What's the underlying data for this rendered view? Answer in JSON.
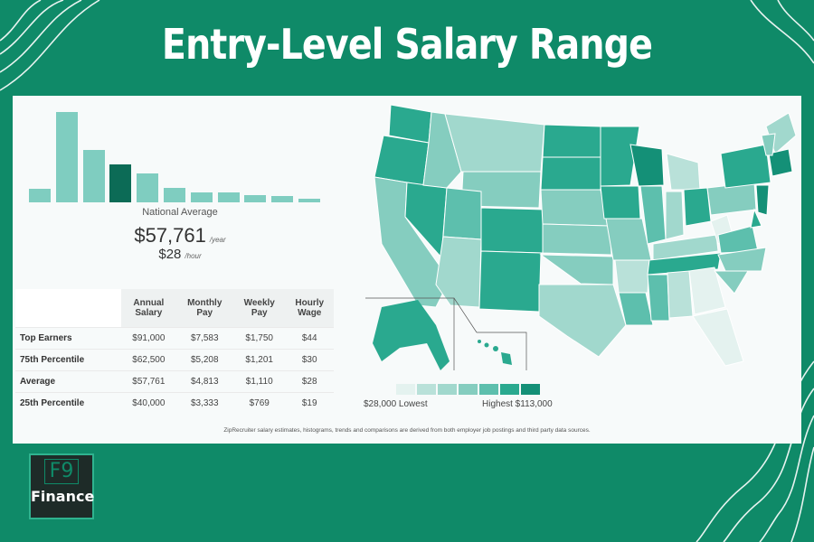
{
  "title": "Entry-Level Salary Range",
  "histogram": {
    "values": [
      15,
      99,
      57,
      42,
      32,
      16,
      11,
      11,
      8,
      7,
      4
    ],
    "highlight_index": 3,
    "bar_color": "#7fcdc0",
    "highlight_color": "#0c6b56"
  },
  "national": {
    "label": "National Average",
    "annual": "$57,761",
    "annual_unit": "/year",
    "hourly": "$28",
    "hourly_unit": "/hour"
  },
  "table": {
    "headers": [
      [
        "Annual",
        "Salary"
      ],
      [
        "Monthly",
        "Pay"
      ],
      [
        "Weekly",
        "Pay"
      ],
      [
        "Hourly",
        "Wage"
      ]
    ],
    "rows": [
      {
        "label": "Top Earners",
        "values": [
          "$91,000",
          "$7,583",
          "$1,750",
          "$44"
        ]
      },
      {
        "label": "75th Percentile",
        "values": [
          "$62,500",
          "$5,208",
          "$1,201",
          "$30"
        ]
      },
      {
        "label": "Average",
        "values": [
          "$57,761",
          "$4,813",
          "$1,110",
          "$28"
        ]
      },
      {
        "label": "25th Percentile",
        "values": [
          "$40,000",
          "$3,333",
          "$769",
          "$19"
        ]
      }
    ]
  },
  "legend": {
    "low": "$28,000 Lowest",
    "high": "Highest $113,000",
    "colors": [
      "#e4f2ef",
      "#b9e1d9",
      "#a1d8cd",
      "#85cdbf",
      "#5dbfad",
      "#2aa98f",
      "#149077"
    ]
  },
  "footnote": "ZipRecruiter salary estimates, histograms, trends and comparisons are derived from both employer job postings and third party data sources.",
  "logo": {
    "top": "F9",
    "bottom": "Finance"
  }
}
